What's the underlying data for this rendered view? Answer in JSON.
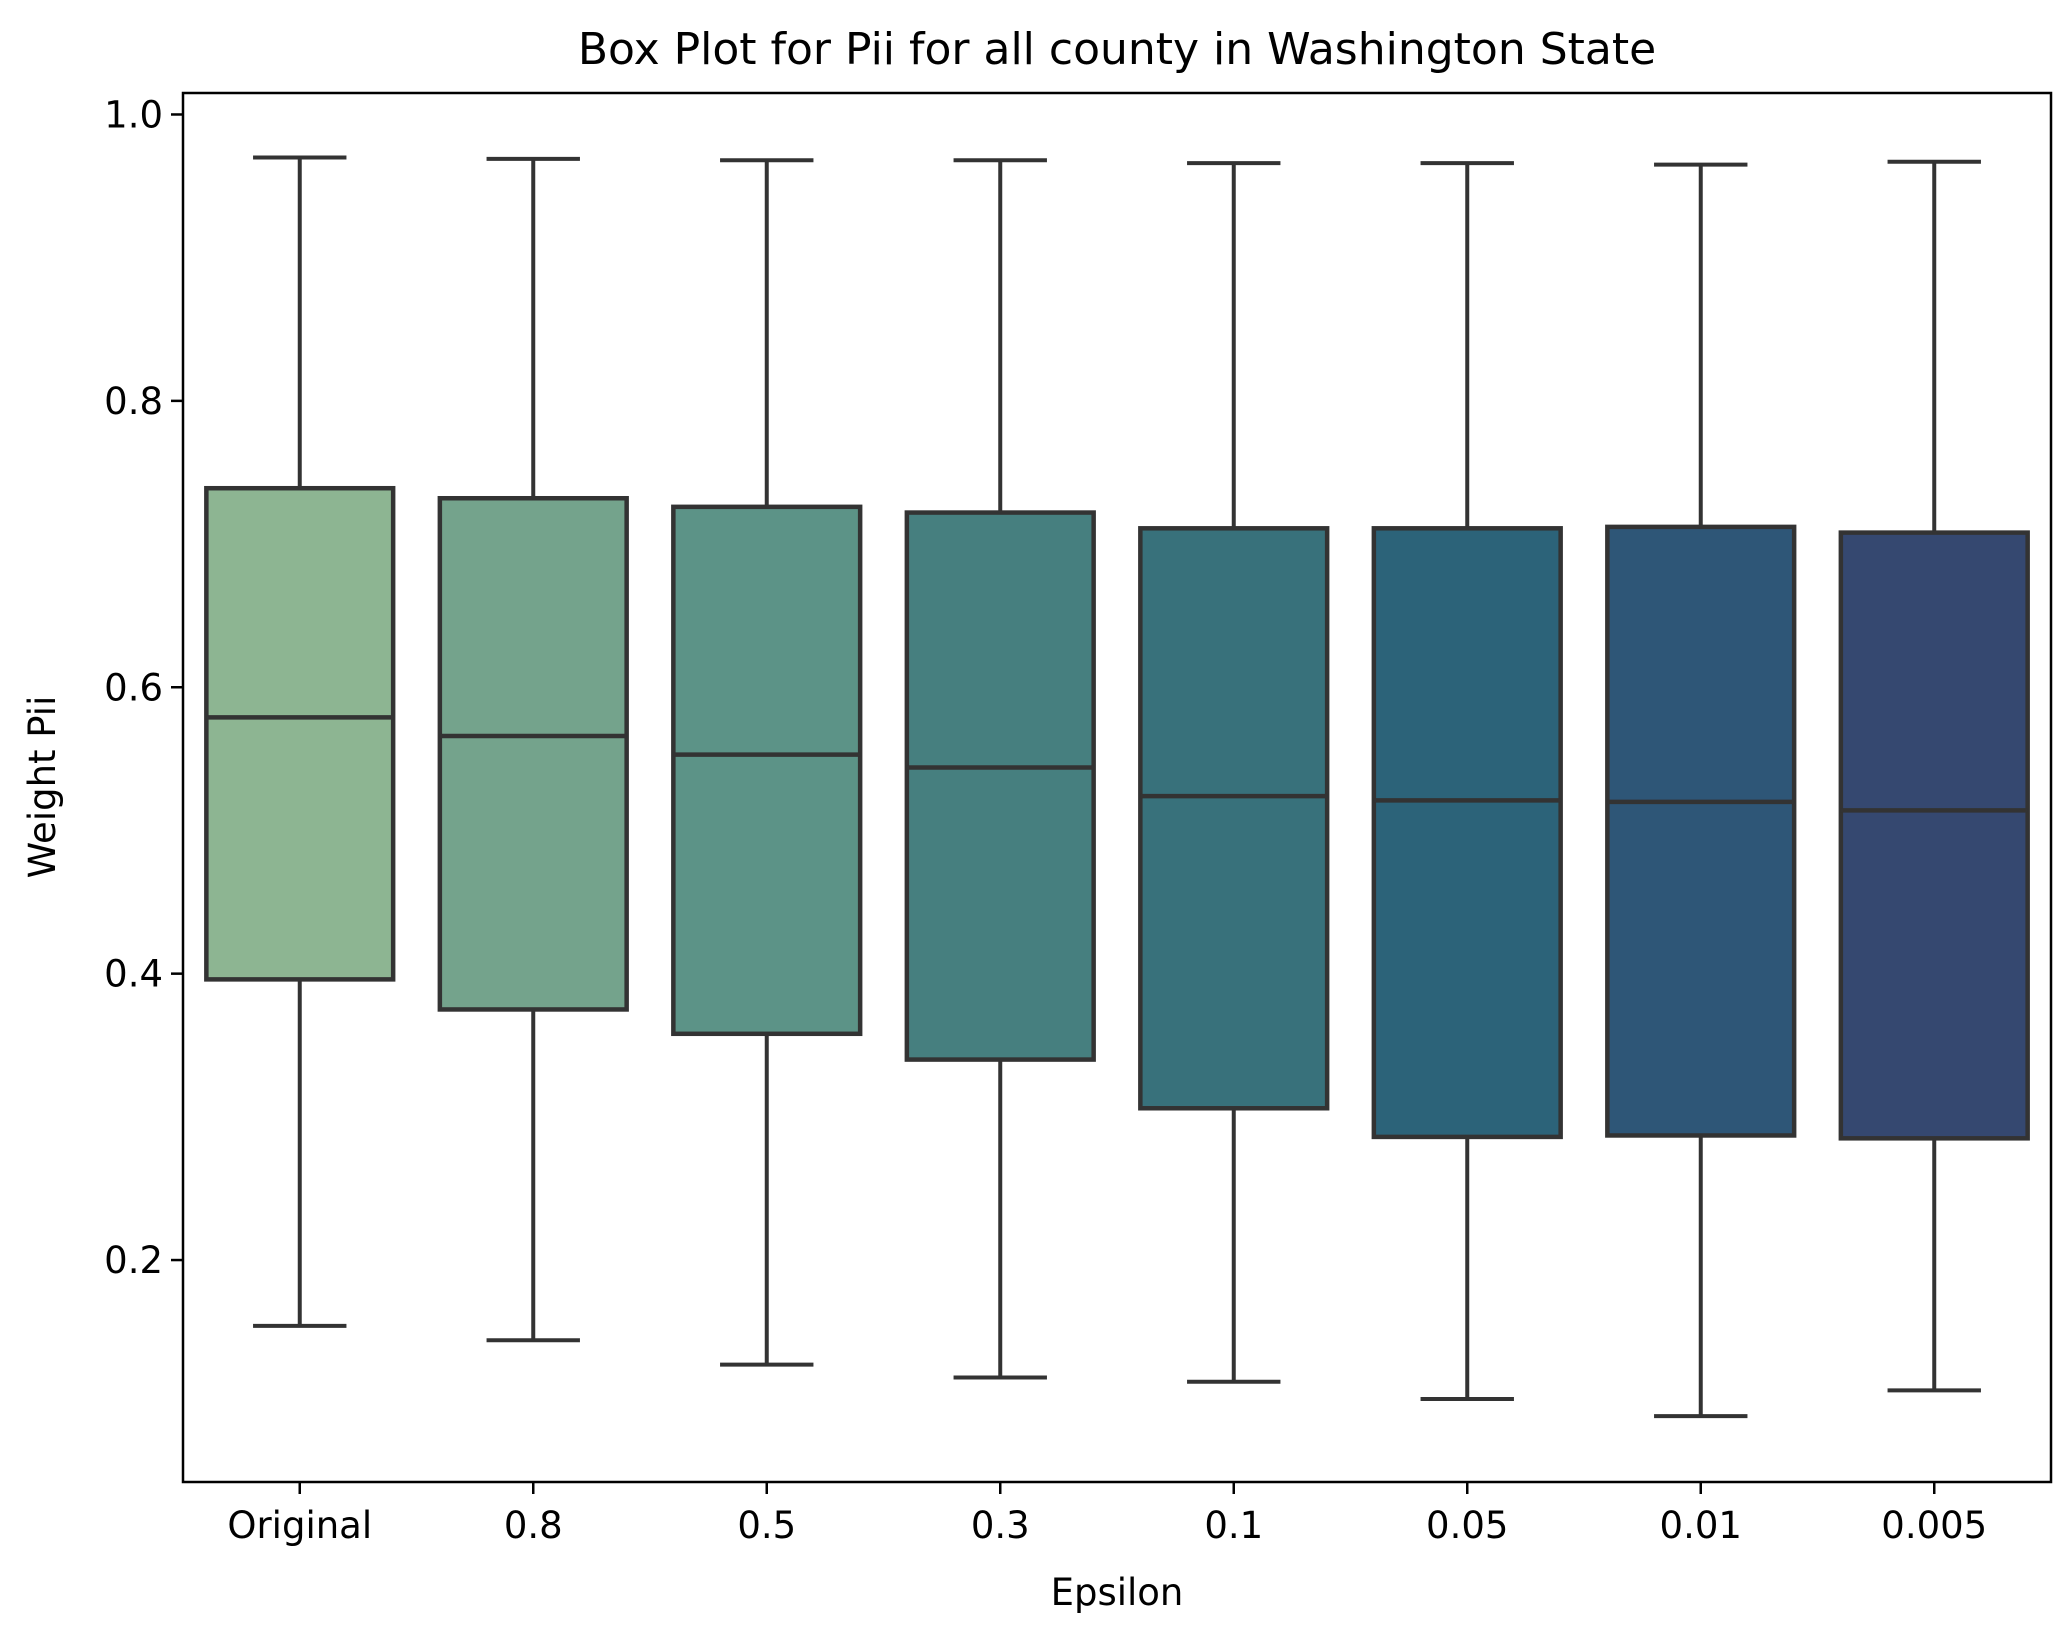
{
  "chart_data": {
    "type": "box",
    "title": "Box Plot for Pii for all county in Washington State",
    "xlabel": "Epsilon",
    "ylabel": "Weight Pii",
    "ylim": [
      0.045,
      1.015
    ],
    "yticks": [
      "0.2",
      "0.4",
      "0.6",
      "0.8",
      "1.0"
    ],
    "grid": false,
    "categories": [
      "Original",
      "0.8",
      "0.5",
      "0.3",
      "0.1",
      "0.05",
      "0.01",
      "0.005"
    ],
    "boxes": [
      {
        "category": "Original",
        "whisker_low": 0.154,
        "q1": 0.396,
        "median": 0.579,
        "q3": 0.739,
        "whisker_high": 0.97,
        "color": "#8db592"
      },
      {
        "category": "0.8",
        "whisker_low": 0.144,
        "q1": 0.375,
        "median": 0.566,
        "q3": 0.732,
        "whisker_high": 0.969,
        "color": "#74a38c"
      },
      {
        "category": "0.5",
        "whisker_low": 0.127,
        "q1": 0.358,
        "median": 0.553,
        "q3": 0.726,
        "whisker_high": 0.968,
        "color": "#5c9387"
      },
      {
        "category": "0.3",
        "whisker_low": 0.118,
        "q1": 0.34,
        "median": 0.544,
        "q3": 0.722,
        "whisker_high": 0.968,
        "color": "#467f7f"
      },
      {
        "category": "0.1",
        "whisker_low": 0.115,
        "q1": 0.306,
        "median": 0.524,
        "q3": 0.711,
        "whisker_high": 0.966,
        "color": "#38717b"
      },
      {
        "category": "0.05",
        "whisker_low": 0.103,
        "q1": 0.286,
        "median": 0.521,
        "q3": 0.711,
        "whisker_high": 0.966,
        "color": "#2c6379"
      },
      {
        "category": "0.01",
        "whisker_low": 0.091,
        "q1": 0.287,
        "median": 0.52,
        "q3": 0.712,
        "whisker_high": 0.965,
        "color": "#2e5677"
      },
      {
        "category": "0.005",
        "whisker_low": 0.109,
        "q1": 0.285,
        "median": 0.514,
        "q3": 0.708,
        "whisker_high": 0.967,
        "color": "#354870"
      }
    ],
    "line_color": "#333333"
  }
}
